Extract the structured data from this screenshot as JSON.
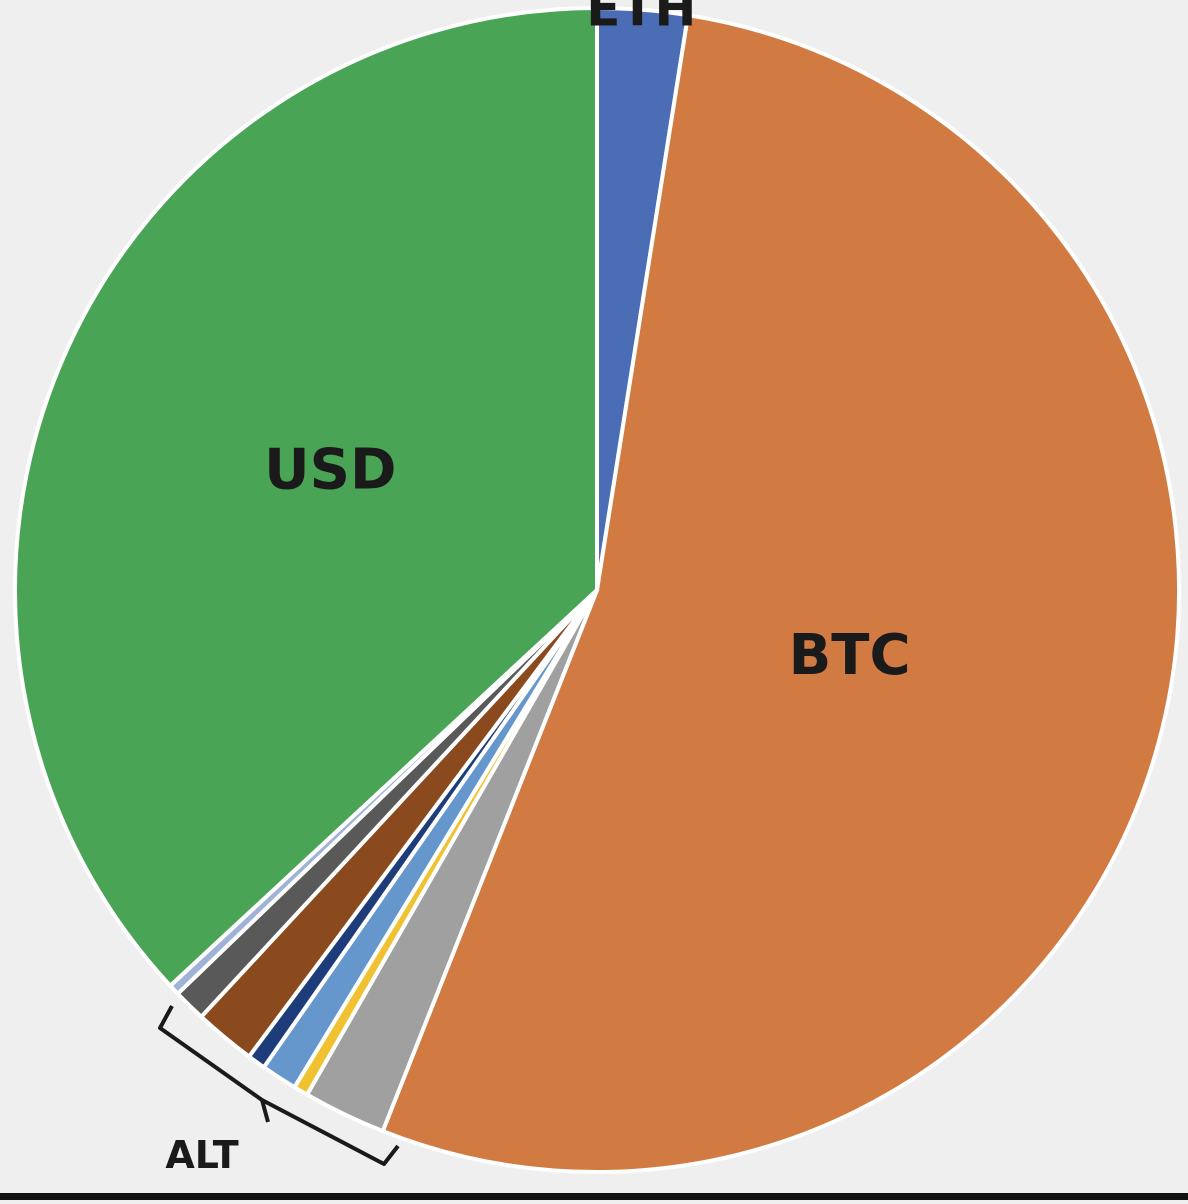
{
  "chart_data": {
    "type": "pie",
    "start_angle_deg": 0,
    "direction": "clockwise",
    "slices": [
      {
        "label": "ETH",
        "value": 2.5,
        "color": "#4a6db5"
      },
      {
        "label": "BTC",
        "value": 53.5,
        "color": "#d17b43"
      },
      {
        "label": "",
        "value": 2.3,
        "color": "#a0a0a0"
      },
      {
        "label": "",
        "value": 0.4,
        "color": "#f0c232"
      },
      {
        "label": "",
        "value": 1.0,
        "color": "#6597cd"
      },
      {
        "label": "",
        "value": 0.5,
        "color": "#1f3c7a"
      },
      {
        "label": "",
        "value": 1.7,
        "color": "#8b4a1e"
      },
      {
        "label": "",
        "value": 0.9,
        "color": "#595959"
      },
      {
        "label": "",
        "value": 0.3,
        "color": "#9fb3d8"
      },
      {
        "label": "USD",
        "value": 36.9,
        "color": "#4aa455"
      }
    ],
    "group_annotation": {
      "label": "ALT",
      "covers_slices": [
        2,
        3,
        4,
        5,
        6,
        7,
        8
      ]
    },
    "slice_border_color": "#ffffff"
  }
}
